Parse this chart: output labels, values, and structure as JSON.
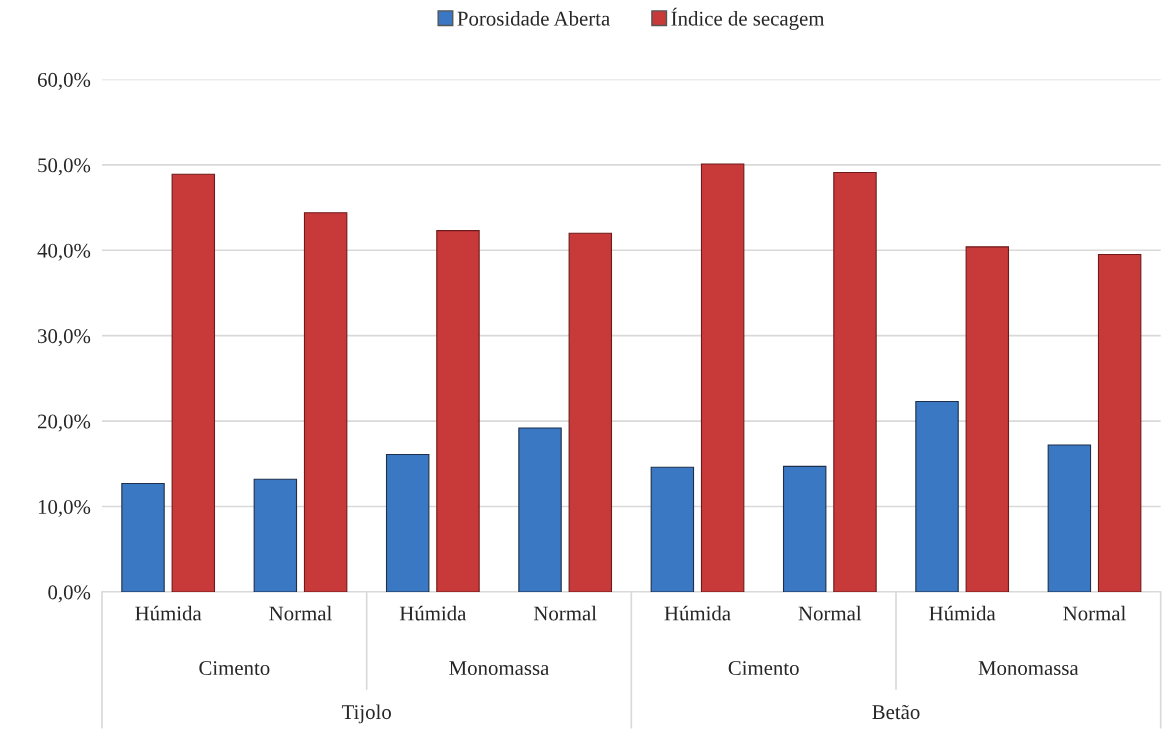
{
  "chart_data": {
    "type": "bar",
    "categories": [
      "Húmida",
      "Normal",
      "Húmida",
      "Normal",
      "Húmida",
      "Normal",
      "Húmida",
      "Normal"
    ],
    "series": [
      {
        "name": "Porosidade Aberta",
        "color": "#3a78c4",
        "values": [
          12.7,
          13.2,
          16.1,
          19.2,
          14.6,
          14.7,
          22.3,
          17.2
        ]
      },
      {
        "name": "Índice de secagem",
        "color": "#c8393a",
        "values": [
          48.9,
          44.4,
          42.3,
          42.0,
          50.1,
          49.1,
          40.4,
          39.5
        ]
      }
    ],
    "annotations": [
      "Cimento",
      "Monomassa",
      "Cimento",
      "Monomassa",
      "Tijolo",
      "Betão"
    ],
    "ylim": [
      0,
      60
    ],
    "yticks": [
      {
        "value": 0,
        "label": "0,0%"
      },
      {
        "value": 10,
        "label": "10,0%"
      },
      {
        "value": 20,
        "label": "20,0%"
      },
      {
        "value": 30,
        "label": "30,0%"
      },
      {
        "value": 40,
        "label": "40,0%"
      },
      {
        "value": 50,
        "label": "50,0%"
      },
      {
        "value": 60,
        "label": "60,0%"
      }
    ],
    "grid": "y",
    "legend": "top"
  }
}
